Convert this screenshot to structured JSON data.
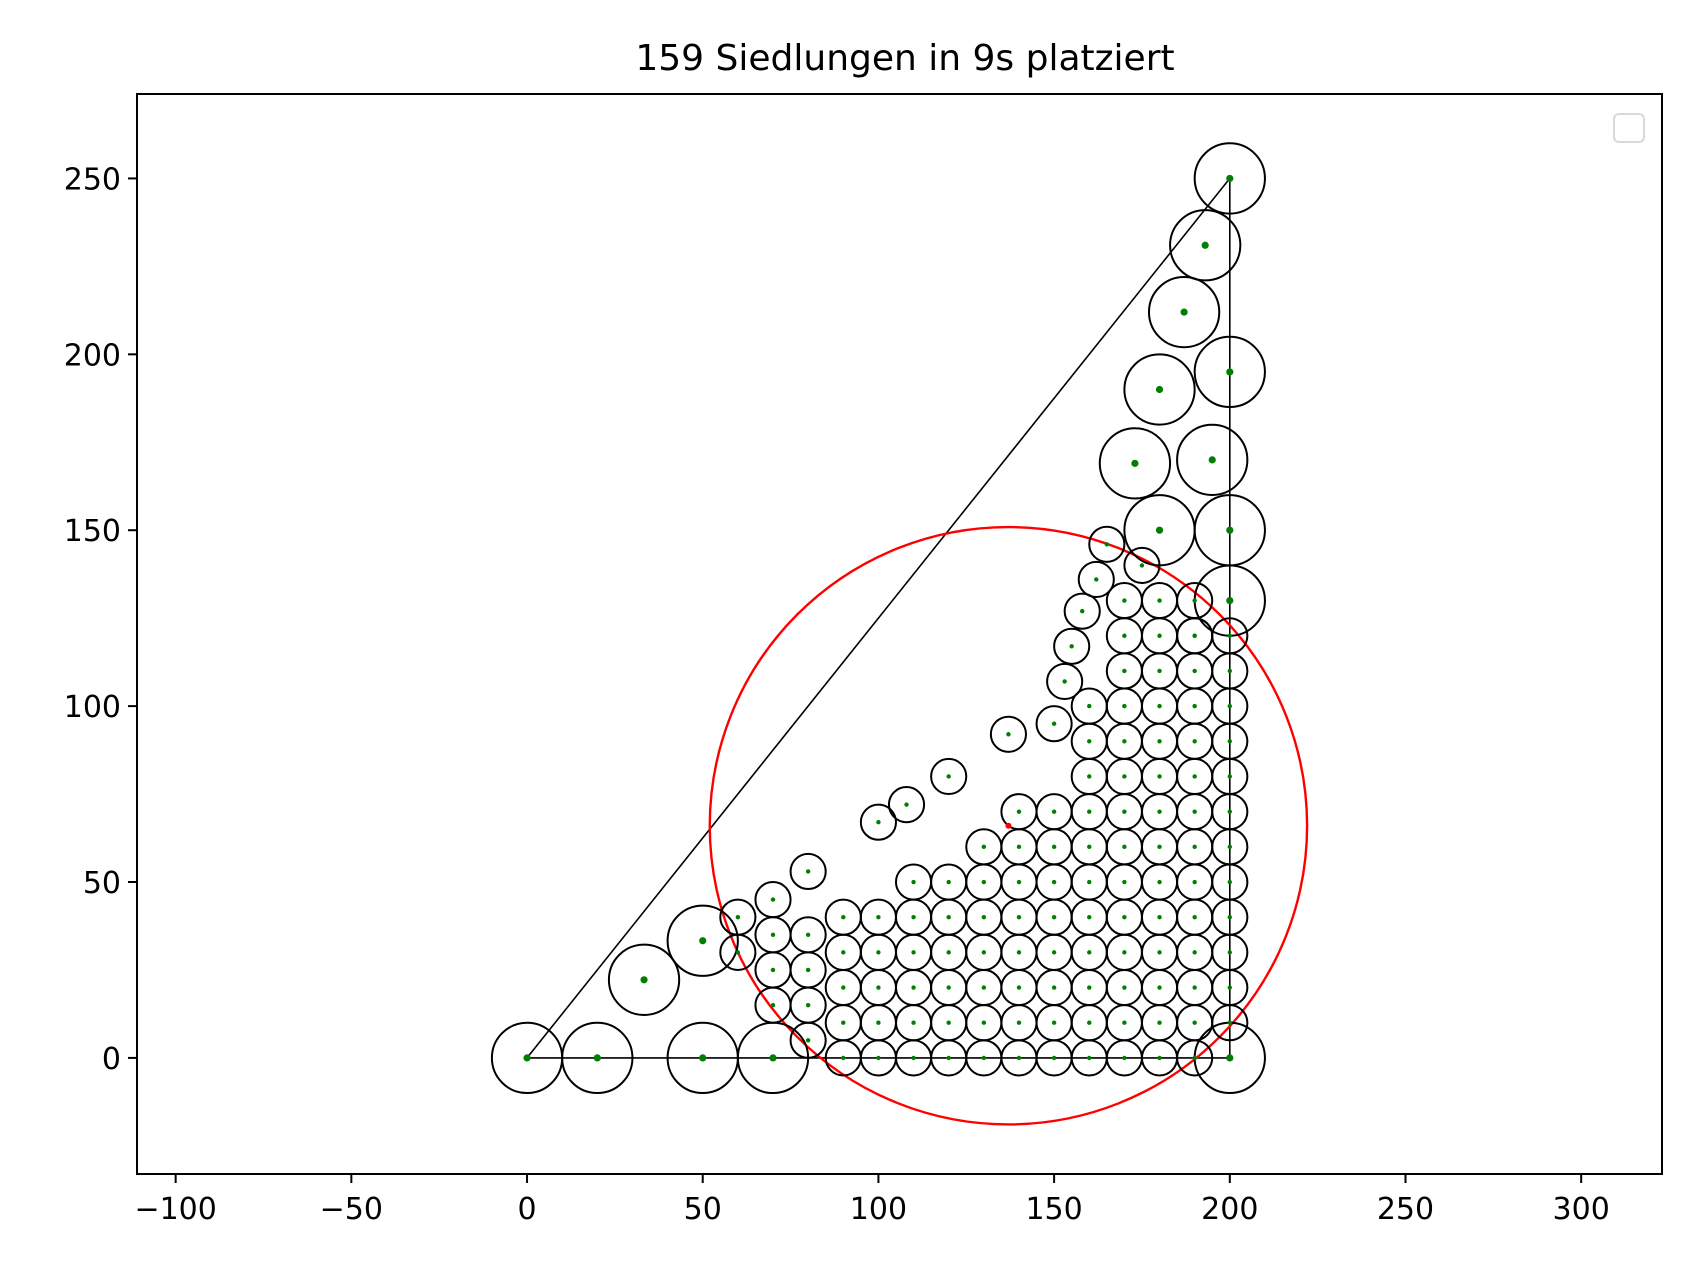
{
  "chart_data": {
    "type": "scatter",
    "title": "159 Siedlungen in 9s platziert",
    "xlabel": "",
    "ylabel": "",
    "xlim": [
      -111,
      323
    ],
    "ylim": [
      -33,
      274
    ],
    "xticks": [
      -100,
      -50,
      0,
      50,
      100,
      150,
      200,
      250,
      300
    ],
    "yticks": [
      0,
      50,
      100,
      150,
      200,
      250
    ],
    "xtick_labels": [
      "−100",
      "−50",
      "0",
      "50",
      "100",
      "150",
      "200",
      "250",
      "300"
    ],
    "ytick_labels": [
      "0",
      "50",
      "100",
      "150",
      "200",
      "250"
    ],
    "grid": false,
    "legend": {
      "placement": "top-right",
      "entries": []
    },
    "polygon": [
      [
        0,
        0
      ],
      [
        200,
        0
      ],
      [
        200,
        250
      ],
      [
        0,
        0
      ]
    ],
    "enclosing_circle": {
      "center": [
        137,
        66
      ],
      "radius": 85,
      "color": "#ff0000"
    },
    "marker_color": "#008000",
    "large_settlements": [
      [
        0,
        0,
        10
      ],
      [
        20,
        0,
        10
      ],
      [
        50,
        0,
        10
      ],
      [
        70,
        0,
        10
      ],
      [
        200,
        0,
        10
      ],
      [
        33.3,
        22.2,
        10
      ],
      [
        50,
        33.3,
        10
      ],
      [
        200,
        130,
        10
      ],
      [
        200,
        150,
        10
      ],
      [
        200,
        195,
        10
      ],
      [
        200,
        250,
        10
      ],
      [
        180,
        150,
        10
      ],
      [
        195,
        170,
        10
      ],
      [
        173,
        169,
        10
      ],
      [
        180,
        190,
        10
      ],
      [
        187,
        212,
        10
      ],
      [
        193,
        231,
        10
      ]
    ],
    "small_settlements": [
      [
        60,
        30,
        5
      ],
      [
        60,
        40,
        5
      ],
      [
        70,
        15,
        5
      ],
      [
        70,
        25,
        5
      ],
      [
        70,
        35,
        5
      ],
      [
        70,
        45,
        5
      ],
      [
        80,
        5,
        5
      ],
      [
        80,
        15,
        5
      ],
      [
        80,
        25,
        5
      ],
      [
        80,
        35,
        5
      ],
      [
        80,
        53,
        5
      ],
      [
        100,
        67,
        5
      ],
      [
        108,
        72,
        5
      ],
      [
        120,
        80,
        5
      ],
      [
        137,
        92,
        5
      ],
      [
        150,
        95,
        5
      ],
      [
        153,
        107,
        5
      ],
      [
        155,
        117,
        5
      ],
      [
        158,
        127,
        5
      ],
      [
        162,
        136,
        5
      ],
      [
        165,
        146,
        5
      ],
      [
        175,
        140,
        5
      ],
      [
        190,
        130,
        5
      ],
      [
        200,
        120,
        5
      ]
    ],
    "grid_spacing": 10,
    "grid_radius": 5
  }
}
